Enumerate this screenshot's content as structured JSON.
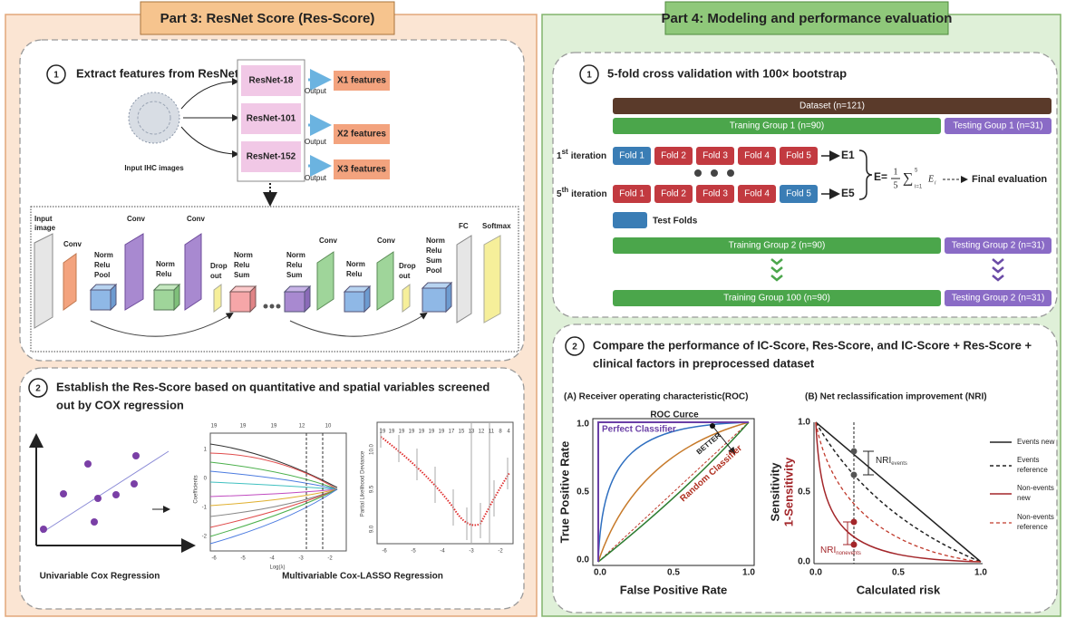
{
  "part3": {
    "title": "Part 3: ResNet Score (Res-Score)",
    "section1": {
      "number": "1",
      "title": "Extract features from ResNet",
      "input_label": "Input IHC images",
      "models": [
        "ResNet-18",
        "ResNet-101",
        "ResNet-152"
      ],
      "output_labels": [
        "Output",
        "Output",
        "Output"
      ],
      "features": [
        "X1 features",
        "X2 features",
        "X3 features"
      ],
      "network_labels": [
        [
          "Input",
          "image"
        ],
        [
          "Conv"
        ],
        [
          "Norm",
          "Relu",
          "Pool"
        ],
        [
          "Conv"
        ],
        [
          "Norm",
          "Relu"
        ],
        [
          "Conv"
        ],
        [
          "Drop",
          "out"
        ],
        [
          "Norm",
          "Relu",
          "Sum"
        ],
        [
          "Norm",
          "Relu",
          "Sum"
        ],
        [
          "Conv"
        ],
        [
          "Norm",
          "Relu"
        ],
        [
          "Conv"
        ],
        [
          "Drop",
          "out"
        ],
        [
          "Norm",
          "Relu",
          "Sum",
          "Pool"
        ],
        [
          "FC"
        ],
        [
          "Softmax"
        ]
      ]
    },
    "section2": {
      "number": "2",
      "title_lines": [
        "Establish the Res-Score based on quantitative and spatial variables screened",
        "out by COX regression"
      ],
      "univariable_caption": "Univariable Cox Regression",
      "multivariable_caption": "Multivariable Cox-LASSO Regression",
      "coef_plot": {
        "top_ticks": [
          "19",
          "19",
          "19",
          "12",
          "10"
        ],
        "y_label": "Coefficients",
        "x_label": "Log(λ)",
        "x_ticks": [
          "-6",
          "-5",
          "-4",
          "-3",
          "-2"
        ],
        "y_ticks": [
          "1",
          "0",
          "-1",
          "-2"
        ]
      },
      "deviance_plot": {
        "top_ticks": [
          "19",
          "19",
          "19",
          "19",
          "19",
          "19",
          "19",
          "17",
          "15",
          "13",
          "12",
          "11",
          "8",
          "4"
        ],
        "y_label": "Partial Likelihood Deviance",
        "x_ticks": [
          "-6",
          "-5",
          "-4",
          "-3",
          "-2"
        ],
        "y_ticks": [
          "10.0",
          "9.5",
          "9.0"
        ]
      }
    }
  },
  "part4": {
    "title": "Part 4: Modeling and performance evaluation",
    "section1": {
      "number": "1",
      "title": "5-fold cross validation with 100× bootstrap",
      "dataset": "Dataset (n=121)",
      "groups": [
        {
          "training": "Traning Group 1 (n=90)",
          "testing": "Testing Goup 1 (n=31)"
        },
        {
          "training": "Training Group 2 (n=90)",
          "testing": "Testing Group 2 (n=31)"
        },
        {
          "training": "Training Group 100 (n=90)",
          "testing": "Testing Group 2 (n=31)"
        }
      ],
      "iterations": [
        {
          "ordinal": "1",
          "suffix": "st",
          "label": "iteration",
          "folds": [
            "Fold 1",
            "Fold 2",
            "Fold 3",
            "Fold 4",
            "Fold 5"
          ],
          "result": "E1"
        },
        {
          "ordinal": "5",
          "suffix": "th",
          "label": "iteration",
          "folds": [
            "Fold 1",
            "Fold 2",
            "Fold 3",
            "Fold 4",
            "Fold 5"
          ],
          "result": "E5"
        }
      ],
      "formula": {
        "lhs": "E=",
        "numerator": "1",
        "denominator": "5",
        "sum": "∑",
        "lower": "i=1",
        "upper": "5",
        "term": "E",
        "subscript": "i"
      },
      "final": "Final evaluation",
      "legend": "Test Folds"
    },
    "section2": {
      "number": "2",
      "title_lines": [
        "Compare the performance of IC-Score, Res-Score, and IC-Score + Res-Score +",
        "clinical factors in preprocessed dataset"
      ],
      "roc": {
        "heading": "(A) Receiver operating characteristic(ROC)",
        "title": "ROC Curce",
        "perfect": "Perfect Classifier",
        "better": "BETTER",
        "random": "Random Classifier",
        "y_label": "True Positive Rate",
        "x_label": "False Positive Rate",
        "x_ticks": [
          "0.0",
          "0.5",
          "1.0"
        ],
        "y_ticks": [
          "0.0",
          "0.5",
          "1.0"
        ]
      },
      "nri": {
        "heading": "(B) Net reclassification improvement (NRI)",
        "y_label_lines": [
          "Sensitivity",
          "1-Sensitivity"
        ],
        "x_label": "Calculated risk",
        "x_ticks": [
          "0.0",
          "0.5",
          "1.0"
        ],
        "y_ticks": [
          "0.0",
          "0.5",
          "1.0"
        ],
        "nri_events": {
          "main": "NRI",
          "sub": "events"
        },
        "nri_nonevents": {
          "main": "NRI",
          "sub": "nonevents"
        },
        "legend": [
          [
            "Events new"
          ],
          [
            "Events",
            "reference"
          ],
          [
            "Non-events",
            "new"
          ],
          [
            "Non-events",
            "reference"
          ]
        ]
      }
    }
  }
}
